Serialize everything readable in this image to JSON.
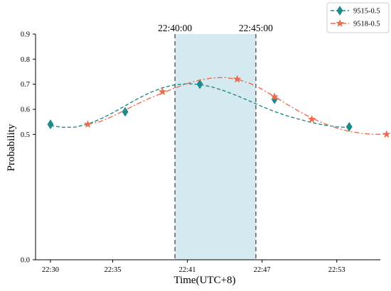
{
  "chart_data": {
    "type": "line",
    "xlabel": "Time(UTC+8)",
    "ylabel": "Probability",
    "x_ticks": [
      {
        "value": 0,
        "label": "22:30"
      },
      {
        "value": 5,
        "label": "22:35"
      },
      {
        "value": 11,
        "label": "22:41"
      },
      {
        "value": 17,
        "label": "22:47"
      },
      {
        "value": 23,
        "label": "22:53"
      }
    ],
    "y_ticks": [
      {
        "value": 0.0,
        "label": "0.0"
      },
      {
        "value": 0.5,
        "label": "0.5"
      },
      {
        "value": 0.6,
        "label": "0.6"
      },
      {
        "value": 0.7,
        "label": "0.7"
      },
      {
        "value": 0.8,
        "label": "0.8"
      },
      {
        "value": 0.9,
        "label": "0.9"
      }
    ],
    "xlim": [
      -1.2,
      26.5
    ],
    "ylim": [
      0.0,
      0.9
    ],
    "grid": false,
    "legend_position": "top-right",
    "highlight_band": {
      "start": 10.0,
      "end": 16.5,
      "start_label": "22:40:00",
      "end_label": "22:45:00",
      "color": "#d4e9f0"
    },
    "series": [
      {
        "name": "9515-0.5",
        "color": "#1f8a8a",
        "marker": "diamond",
        "line_style": "dashed",
        "points": [
          [
            0,
            0.54
          ],
          [
            6,
            0.59
          ],
          [
            12,
            0.7
          ],
          [
            18,
            0.64
          ],
          [
            24,
            0.53
          ]
        ],
        "curve": [
          [
            0,
            0.535
          ],
          [
            1,
            0.528
          ],
          [
            2,
            0.529
          ],
          [
            3,
            0.541
          ],
          [
            4,
            0.561
          ],
          [
            5,
            0.586
          ],
          [
            6,
            0.614
          ],
          [
            7,
            0.642
          ],
          [
            8,
            0.667
          ],
          [
            9,
            0.686
          ],
          [
            10,
            0.698
          ],
          [
            11,
            0.702
          ],
          [
            12,
            0.699
          ],
          [
            13,
            0.689
          ],
          [
            14,
            0.673
          ],
          [
            15,
            0.654
          ],
          [
            16,
            0.633
          ],
          [
            17,
            0.611
          ],
          [
            18,
            0.591
          ],
          [
            19,
            0.574
          ],
          [
            20,
            0.56
          ],
          [
            21,
            0.547
          ],
          [
            22,
            0.537
          ],
          [
            23,
            0.53
          ],
          [
            24,
            0.527
          ]
        ]
      },
      {
        "name": "9518-0.5",
        "color": "#ee6c4d",
        "marker": "star",
        "line_style": "dashdot",
        "points": [
          [
            3,
            0.54
          ],
          [
            9,
            0.67
          ],
          [
            15,
            0.72
          ],
          [
            18,
            0.65
          ],
          [
            21,
            0.56
          ],
          [
            27,
            0.5
          ]
        ],
        "curve": [
          [
            3,
            0.54
          ],
          [
            4,
            0.551
          ],
          [
            5,
            0.572
          ],
          [
            6,
            0.597
          ],
          [
            7,
            0.622
          ],
          [
            8,
            0.645
          ],
          [
            9,
            0.665
          ],
          [
            10,
            0.685
          ],
          [
            11,
            0.703
          ],
          [
            12,
            0.717
          ],
          [
            13,
            0.725
          ],
          [
            14,
            0.727
          ],
          [
            15,
            0.72
          ],
          [
            16,
            0.704
          ],
          [
            17,
            0.68
          ],
          [
            18,
            0.651
          ],
          [
            19,
            0.62
          ],
          [
            20,
            0.591
          ],
          [
            21,
            0.565
          ],
          [
            22,
            0.543
          ],
          [
            23,
            0.525
          ],
          [
            24,
            0.512
          ],
          [
            25,
            0.504
          ],
          [
            26,
            0.5
          ],
          [
            27,
            0.501
          ]
        ]
      }
    ]
  }
}
